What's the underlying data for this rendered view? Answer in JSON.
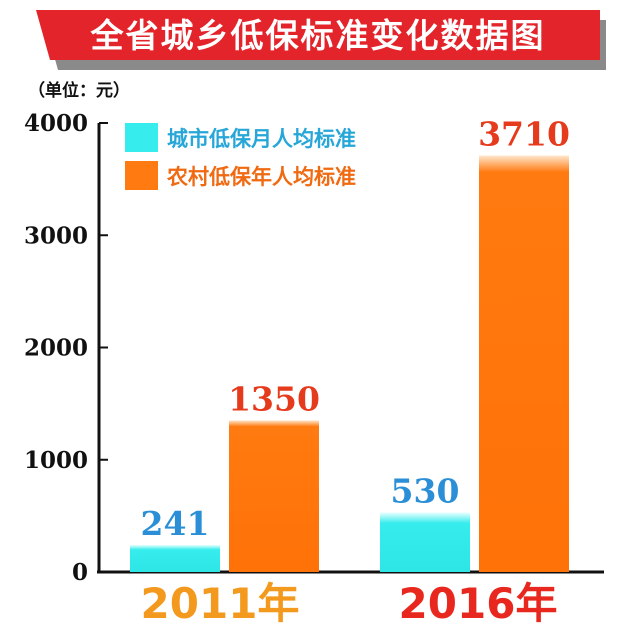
{
  "chart_data": {
    "type": "bar",
    "title": "全省城乡低保标准变化数据图",
    "unit_label": "（单位：元）",
    "categories": [
      "2011年",
      "2016年"
    ],
    "category_colors": [
      "#f39a1e",
      "#e8281e"
    ],
    "series": [
      {
        "name": "城市低保月人均标准",
        "values": [
          241,
          530
        ],
        "color": "#36ecec",
        "label_color": "#2a8fd6",
        "legend_text_color": "#27a6d8"
      },
      {
        "name": "农村低保年人均标准",
        "values": [
          1350,
          3710
        ],
        "color": "#ff7a10",
        "label_color": "#e63a1c",
        "legend_text_color": "#f06a12"
      }
    ],
    "ylim": [
      0,
      4000
    ],
    "yticks": [
      "0",
      "1000",
      "2000",
      "3000",
      "4000"
    ],
    "grid": false,
    "legend_position": "top-left"
  },
  "colors": {
    "title_bg": "#e3242b",
    "title_shadow": "#8a8a8a",
    "axis": "#111111"
  }
}
